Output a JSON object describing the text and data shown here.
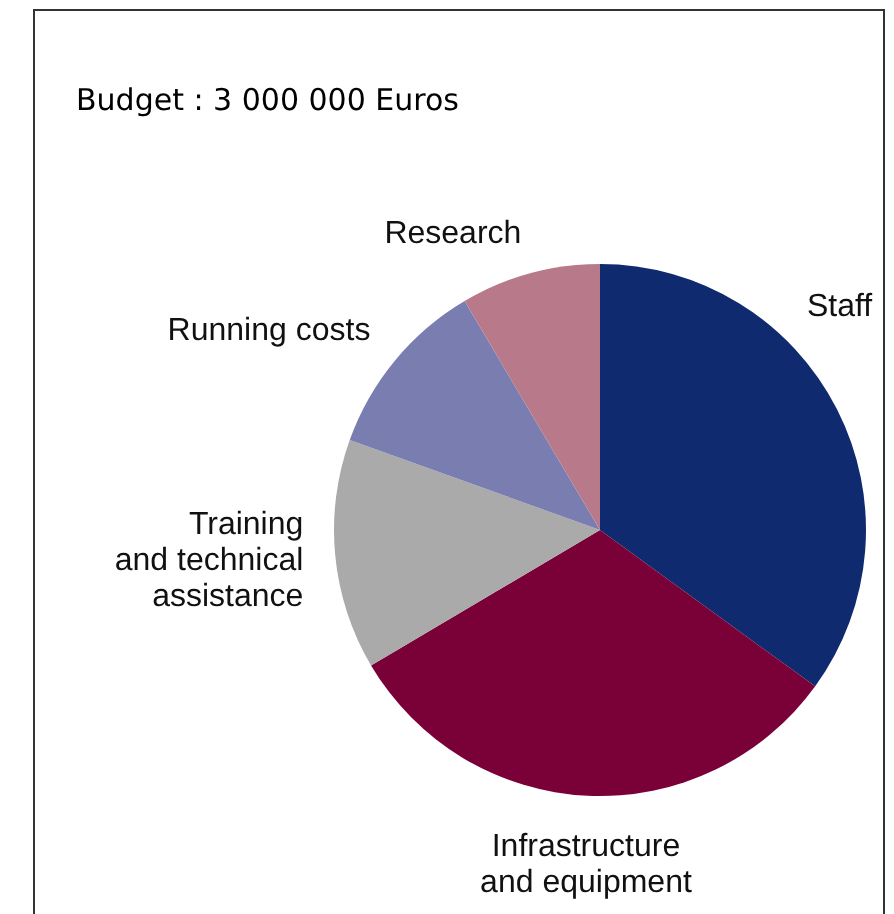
{
  "chart_data": {
    "type": "pie",
    "title": "Budget : 3 000 000 Euros",
    "categories": [
      "Staff",
      "Infrastructure\nand equipment",
      "Training\nand technical\nassistance",
      "Running costs",
      "Research"
    ],
    "values": [
      35,
      31.5,
      14,
      11,
      8.5
    ],
    "colors": [
      "#0f2a6e",
      "#7a0038",
      "#aaaaaa",
      "#7a7db0",
      "#b87a8a"
    ]
  }
}
